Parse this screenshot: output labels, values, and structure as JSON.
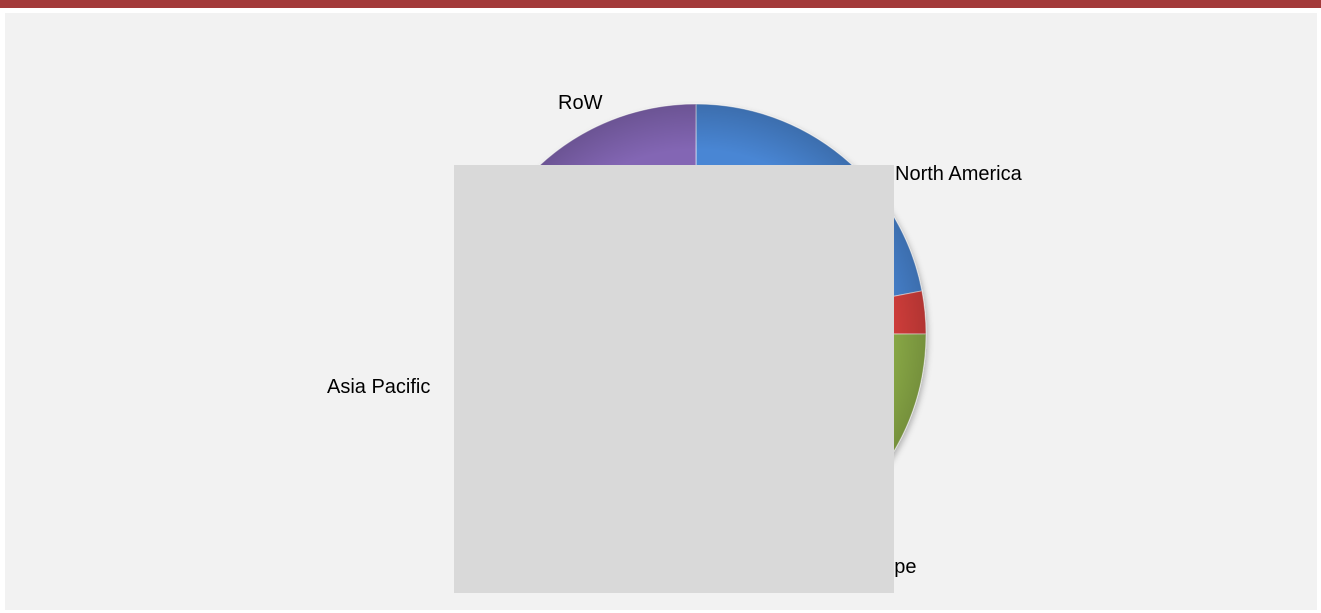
{
  "header": {
    "accent_color": "#a33a3a",
    "background_color": "#f2f2f2"
  },
  "chart_data": {
    "type": "pie",
    "categories": [
      "North America",
      "Europe",
      "Asia Pacific",
      "RoW"
    ],
    "values": [
      22,
      3,
      63,
      12
    ],
    "colors": [
      "#4a86d4",
      "#d9403c",
      "#8fb04a",
      "#8366b4"
    ],
    "labels": [
      "North America",
      "Europe",
      "Asia Pacific",
      "RoW"
    ]
  },
  "occluder": {
    "color": "#d9d9d9"
  }
}
